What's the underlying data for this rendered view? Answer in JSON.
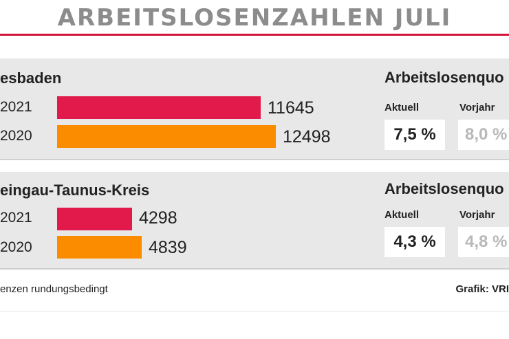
{
  "title": "ARBEITSLOSENZAHLEN JULI",
  "colors": {
    "accent": "#d4143c",
    "y2021": "#e11a4b",
    "y2020": "#fb8c00",
    "panel": "#e8e8e8"
  },
  "chart_data": {
    "type": "bar",
    "orientation": "horizontal",
    "title": "ARBEITSLOSENZAHLEN JULI",
    "groups": [
      {
        "region": "esbaden",
        "bars": [
          {
            "year": "2021",
            "value": 11645
          },
          {
            "year": "2020",
            "value": 12498
          }
        ],
        "quote": {
          "header": "Arbeitslosenquo",
          "current_label": "Aktuell",
          "current": "7,5 %",
          "previous_label": "Vorjahr",
          "previous": "8,0 %"
        }
      },
      {
        "region": "eingau-Taunus-Kreis",
        "bars": [
          {
            "year": "2021",
            "value": 4298
          },
          {
            "year": "2020",
            "value": 4839
          }
        ],
        "quote": {
          "header": "Arbeitslosenquo",
          "current_label": "Aktuell",
          "current": "4,3 %",
          "previous_label": "Vorjahr",
          "previous": "4,8 %"
        }
      }
    ]
  },
  "footer": {
    "left": "enzen rundungsbedingt",
    "right": "Grafik: VRI"
  }
}
